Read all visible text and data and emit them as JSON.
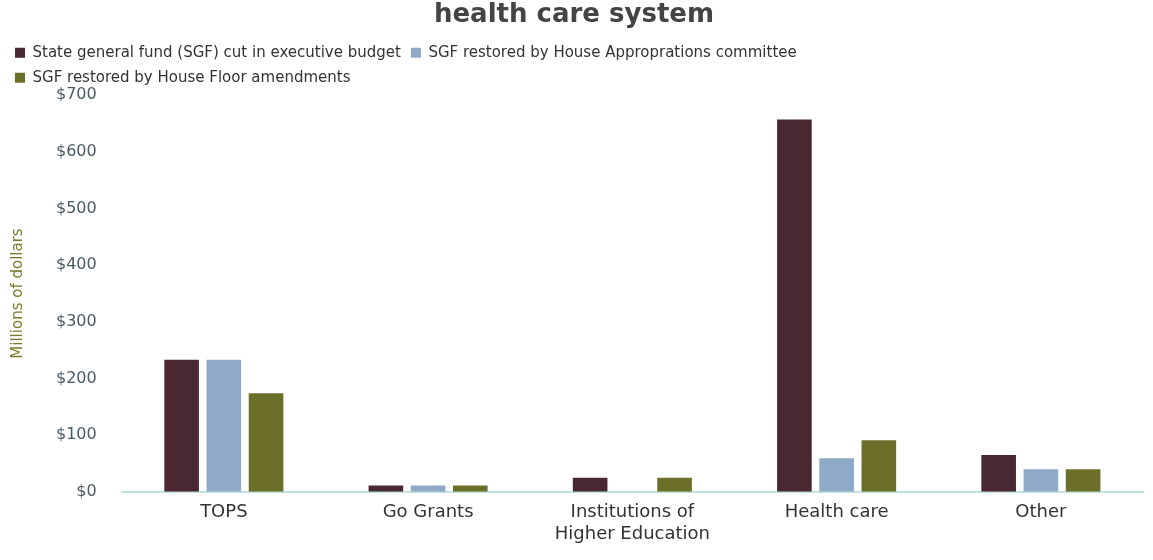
{
  "chart_data": {
    "type": "bar",
    "title": "health care system",
    "ylabel": "Millions of dollars",
    "categories": [
      "TOPS",
      "Go Grants",
      "Institutions of Higher Education",
      "Health care",
      "Other"
    ],
    "series": [
      {
        "name": "State general fund (SGF) cut in executive budget",
        "color": "#4a2832",
        "values": [
          233,
          11,
          25,
          657,
          65
        ]
      },
      {
        "name": "SGF restored by House Approprations committee",
        "color": "#8faac6",
        "values": [
          233,
          11,
          0,
          59,
          40
        ]
      },
      {
        "name": "SGF restored by House Floor amendments",
        "color": "#6b6f2a",
        "values": [
          174,
          11,
          25,
          91,
          40
        ]
      }
    ],
    "ylim": [
      0,
      700
    ],
    "yticks": [
      {
        "value": 0,
        "label": "$0"
      },
      {
        "value": 100,
        "label": "$100"
      },
      {
        "value": 200,
        "label": "$200"
      },
      {
        "value": 300,
        "label": "$300"
      },
      {
        "value": 400,
        "label": "$400"
      },
      {
        "value": 500,
        "label": "$500"
      },
      {
        "value": 600,
        "label": "$600"
      },
      {
        "value": 700,
        "label": "$700"
      }
    ],
    "grid": false,
    "legend": "top left"
  }
}
